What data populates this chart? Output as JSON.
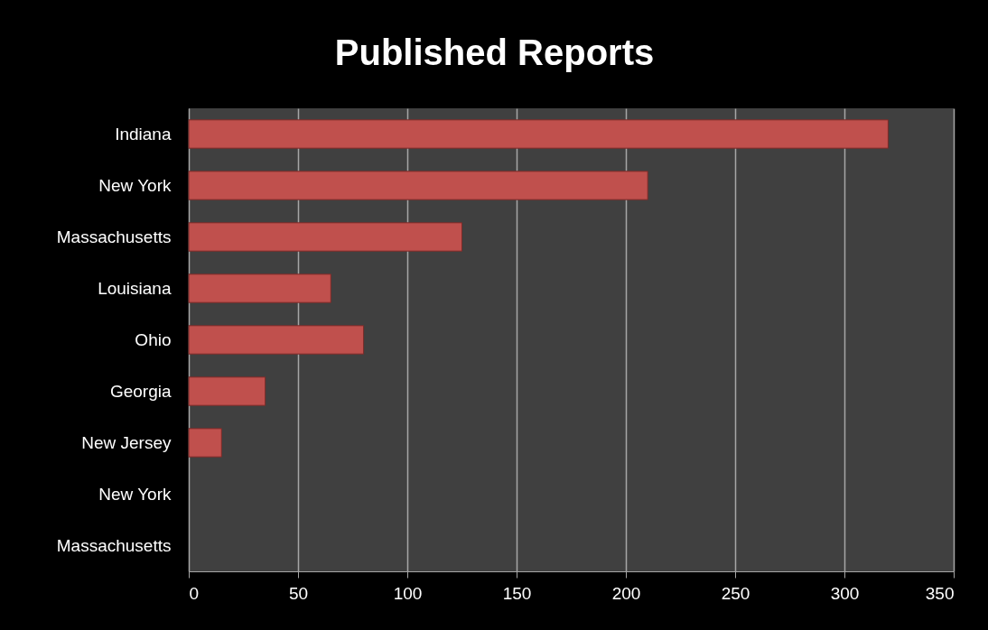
{
  "chart_data": {
    "type": "bar",
    "title": "Published Reports",
    "orientation": "horizontal",
    "categories": [
      "Indiana",
      "New York",
      "Massachusetts",
      "Louisiana",
      "Ohio ",
      "Georgia",
      "New Jersey",
      "New York",
      "Massachusetts"
    ],
    "values": [
      320,
      210,
      125,
      65,
      80,
      35,
      15,
      null,
      null
    ],
    "color": "#c0504d",
    "xlim": [
      0,
      350
    ],
    "xticks": [
      0,
      50,
      100,
      150,
      200,
      250,
      300,
      350
    ],
    "grid": "x"
  }
}
